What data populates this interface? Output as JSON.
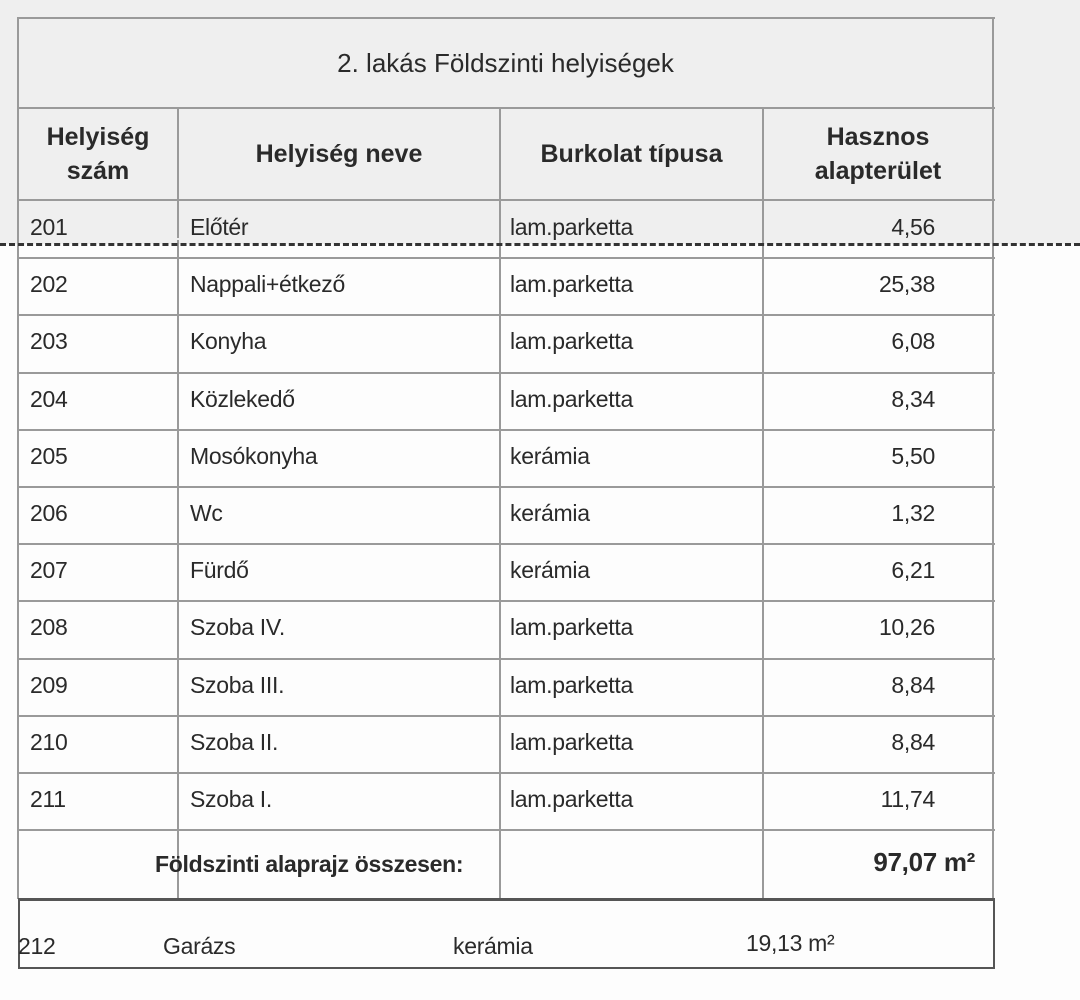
{
  "title": "2. lakás Földszinti helyiségek",
  "headers": {
    "room_number": "Helyiség szám",
    "room_name": "Helyiség neve",
    "flooring": "Burkolat típusa",
    "area": "Hasznos alapterület"
  },
  "rows": [
    {
      "number": "201",
      "name": "Előtér",
      "flooring": "lam.parketta",
      "area": "4,56"
    },
    {
      "number": "202",
      "name": "Nappali+étkező",
      "flooring": "lam.parketta",
      "area": "25,38"
    },
    {
      "number": "203",
      "name": "Konyha",
      "flooring": "lam.parketta",
      "area": "6,08"
    },
    {
      "number": "204",
      "name": "Közlekedő",
      "flooring": "lam.parketta",
      "area": "8,34"
    },
    {
      "number": "205",
      "name": "Mosókonyha",
      "flooring": "kerámia",
      "area": "5,50"
    },
    {
      "number": "206",
      "name": "Wc",
      "flooring": "kerámia",
      "area": "1,32"
    },
    {
      "number": "207",
      "name": "Fürdő",
      "flooring": "kerámia",
      "area": "6,21"
    },
    {
      "number": "208",
      "name": "Szoba IV.",
      "flooring": "lam.parketta",
      "area": "10,26"
    },
    {
      "number": "209",
      "name": "Szoba III.",
      "flooring": "lam.parketta",
      "area": "8,84"
    },
    {
      "number": "210",
      "name": "Szoba II.",
      "flooring": "lam.parketta",
      "area": "8,84"
    },
    {
      "number": "211",
      "name": "Szoba I.",
      "flooring": "lam.parketta",
      "area": "11,74"
    }
  ],
  "total": {
    "label": "Földszinti alaprajz összesen:",
    "value": "97,07 m²"
  },
  "garage": {
    "number": "212",
    "name": "Garázs",
    "flooring": "kerámia",
    "area": "19,13 m²"
  }
}
